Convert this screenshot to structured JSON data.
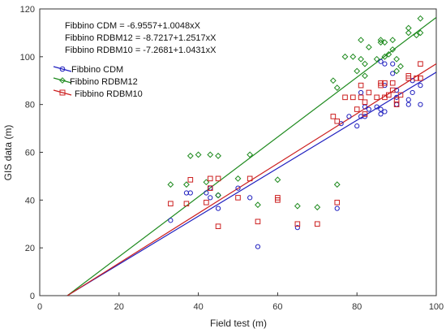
{
  "chart_data": {
    "type": "scatter",
    "xlabel": "Field test (m)",
    "ylabel": "GIS data (m)",
    "xlim": [
      0,
      100
    ],
    "ylim": [
      0,
      120
    ],
    "xticks": [
      0,
      20,
      40,
      60,
      80,
      100
    ],
    "yticks": [
      0,
      20,
      40,
      60,
      80,
      100,
      120
    ],
    "grid": false,
    "legend_position": "top-left",
    "equations": [
      "Fibbino CDM = -6.9557+1.0048xX",
      "Fibbino RDBM12 = -8.7217+1.2517xX",
      "Fibbino RDBM10 = -7.2681+1.0431xX"
    ],
    "series": [
      {
        "name": "Fibbino CDM",
        "marker": "circle",
        "color": "#1f1fbf",
        "fit": {
          "intercept": -6.9557,
          "slope": 1.0048
        },
        "points": [
          [
            33,
            31.5
          ],
          [
            37,
            43
          ],
          [
            38,
            43
          ],
          [
            42,
            43
          ],
          [
            43,
            41
          ],
          [
            43,
            45
          ],
          [
            45,
            36.5
          ],
          [
            45,
            42
          ],
          [
            50,
            45
          ],
          [
            53,
            41
          ],
          [
            55,
            20.5
          ],
          [
            65,
            28.5
          ],
          [
            75,
            36.5
          ],
          [
            76,
            72
          ],
          [
            78,
            75
          ],
          [
            80,
            71
          ],
          [
            81,
            75
          ],
          [
            81,
            85
          ],
          [
            82,
            75
          ],
          [
            82,
            79
          ],
          [
            83,
            78
          ],
          [
            85,
            79
          ],
          [
            86,
            76
          ],
          [
            86,
            78
          ],
          [
            86,
            98
          ],
          [
            87,
            77
          ],
          [
            87,
            88
          ],
          [
            87,
            97
          ],
          [
            89,
            93
          ],
          [
            89,
            97
          ],
          [
            90,
            80
          ],
          [
            90,
            83
          ],
          [
            90,
            86
          ],
          [
            93,
            80
          ],
          [
            93,
            82
          ],
          [
            94,
            85
          ],
          [
            94,
            90
          ],
          [
            96,
            80
          ],
          [
            96,
            88
          ]
        ]
      },
      {
        "name": "Fibbino RDBM12",
        "marker": "diamond",
        "color": "#1e8a1e",
        "fit": {
          "intercept": -8.7217,
          "slope": 1.2517
        },
        "points": [
          [
            33,
            46.5
          ],
          [
            37,
            46.5
          ],
          [
            38,
            58.5
          ],
          [
            40,
            59
          ],
          [
            42,
            47.5
          ],
          [
            43,
            59
          ],
          [
            45,
            58.5
          ],
          [
            45,
            42
          ],
          [
            50,
            49
          ],
          [
            53,
            59
          ],
          [
            55,
            38
          ],
          [
            60,
            48.5
          ],
          [
            65,
            37.5
          ],
          [
            70,
            37
          ],
          [
            75,
            46.5
          ],
          [
            74,
            90
          ],
          [
            75,
            87
          ],
          [
            77,
            100
          ],
          [
            79,
            100
          ],
          [
            80,
            94
          ],
          [
            81,
            99
          ],
          [
            81,
            107
          ],
          [
            82,
            92
          ],
          [
            82,
            97
          ],
          [
            83,
            104
          ],
          [
            85,
            99
          ],
          [
            86,
            106
          ],
          [
            86,
            107
          ],
          [
            87,
            100
          ],
          [
            87,
            106
          ],
          [
            88,
            101
          ],
          [
            89,
            103
          ],
          [
            89,
            107
          ],
          [
            90,
            94
          ],
          [
            90,
            99
          ],
          [
            91,
            96
          ],
          [
            93,
            110
          ],
          [
            93,
            112
          ],
          [
            95,
            109
          ],
          [
            96,
            110
          ],
          [
            96,
            116
          ]
        ]
      },
      {
        "name": "Fibbino RDBM10",
        "marker": "square",
        "color": "#cc1f1f",
        "fit": {
          "intercept": -7.2681,
          "slope": 1.0431
        },
        "points": [
          [
            33,
            38.5
          ],
          [
            37,
            38.5
          ],
          [
            38,
            48.5
          ],
          [
            42,
            39
          ],
          [
            43,
            49
          ],
          [
            43,
            45
          ],
          [
            45,
            49
          ],
          [
            45,
            29
          ],
          [
            50,
            41
          ],
          [
            53,
            49
          ],
          [
            55,
            31
          ],
          [
            60,
            40
          ],
          [
            60,
            41
          ],
          [
            65,
            30
          ],
          [
            70,
            30
          ],
          [
            75,
            39
          ],
          [
            74,
            75
          ],
          [
            75,
            73
          ],
          [
            77,
            83
          ],
          [
            79,
            83
          ],
          [
            80,
            78
          ],
          [
            81,
            83
          ],
          [
            81,
            88
          ],
          [
            82,
            76
          ],
          [
            82,
            81
          ],
          [
            83,
            85
          ],
          [
            85,
            83
          ],
          [
            86,
            88
          ],
          [
            86,
            89
          ],
          [
            87,
            83
          ],
          [
            87,
            89
          ],
          [
            88,
            84
          ],
          [
            89,
            86
          ],
          [
            89,
            89
          ],
          [
            90,
            80
          ],
          [
            90,
            82
          ],
          [
            91,
            84
          ],
          [
            93,
            91
          ],
          [
            93,
            92
          ],
          [
            95,
            91
          ],
          [
            96,
            91
          ],
          [
            96,
            97
          ]
        ]
      }
    ]
  }
}
